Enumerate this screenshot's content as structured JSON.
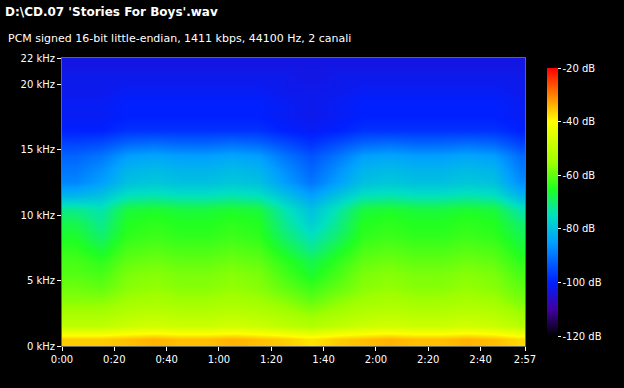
{
  "chart_data": {
    "type": "heatmap",
    "title": "D:\\CD.07 'Stories For Boys'.wav",
    "subtitle": "PCM signed 16-bit little-endian, 1411 kbps, 44100 Hz, 2 canali",
    "x": [
      5,
      15,
      25,
      35,
      45,
      55,
      65,
      75,
      85,
      95,
      105,
      115,
      125,
      135,
      145,
      155,
      165,
      175
    ],
    "y": [
      0.5,
      1.5,
      2.5,
      3.5,
      4.5,
      5.5,
      6.5,
      7.5,
      8.5,
      9.5,
      10.5,
      11.5,
      12.5,
      13.5,
      14.5,
      15.5,
      16.5,
      17.5,
      18.5,
      19.5,
      20.5,
      21.5
    ],
    "z": [
      [
        -36,
        -36,
        -35,
        -34,
        -35,
        -35,
        -34,
        -35,
        -36,
        -38,
        -36,
        -35,
        -34,
        -35,
        -35,
        -34,
        -35,
        -37
      ],
      [
        -50,
        -50,
        -48,
        -47,
        -48,
        -48,
        -47,
        -48,
        -50,
        -52,
        -50,
        -48,
        -47,
        -48,
        -48,
        -47,
        -48,
        -51
      ],
      [
        -54,
        -54,
        -52,
        -51,
        -52,
        -52,
        -51,
        -52,
        -54,
        -56,
        -54,
        -52,
        -51,
        -52,
        -52,
        -51,
        -52,
        -55
      ],
      [
        -57,
        -57,
        -55,
        -54,
        -55,
        -55,
        -54,
        -55,
        -57,
        -60,
        -57,
        -55,
        -54,
        -55,
        -55,
        -54,
        -55,
        -58
      ],
      [
        -59,
        -60,
        -57,
        -56,
        -57,
        -57,
        -56,
        -57,
        -60,
        -63,
        -60,
        -57,
        -56,
        -57,
        -57,
        -56,
        -57,
        -60
      ],
      [
        -61,
        -62,
        -58,
        -57,
        -58,
        -58,
        -57,
        -58,
        -62,
        -66,
        -62,
        -58,
        -57,
        -58,
        -58,
        -57,
        -58,
        -62
      ],
      [
        -62,
        -64,
        -60,
        -59,
        -60,
        -60,
        -59,
        -60,
        -64,
        -68,
        -64,
        -60,
        -59,
        -60,
        -60,
        -59,
        -60,
        -64
      ],
      [
        -64,
        -67,
        -62,
        -61,
        -62,
        -62,
        -61,
        -62,
        -67,
        -72,
        -67,
        -62,
        -61,
        -62,
        -62,
        -61,
        -62,
        -66
      ],
      [
        -66,
        -70,
        -64,
        -63,
        -64,
        -64,
        -63,
        -64,
        -70,
        -75,
        -70,
        -64,
        -63,
        -64,
        -64,
        -63,
        -64,
        -68
      ],
      [
        -68,
        -72,
        -65,
        -64,
        -65,
        -65,
        -64,
        -65,
        -72,
        -78,
        -72,
        -65,
        -64,
        -65,
        -65,
        -64,
        -65,
        -70
      ],
      [
        -72,
        -74,
        -67,
        -66,
        -67,
        -67,
        -66,
        -67,
        -74,
        -80,
        -74,
        -67,
        -66,
        -67,
        -67,
        -66,
        -67,
        -74
      ],
      [
        -82,
        -80,
        -75,
        -74,
        -75,
        -75,
        -74,
        -75,
        -80,
        -85,
        -80,
        -75,
        -74,
        -75,
        -75,
        -74,
        -75,
        -82
      ],
      [
        -88,
        -85,
        -80,
        -79,
        -80,
        -80,
        -79,
        -80,
        -85,
        -90,
        -85,
        -80,
        -79,
        -80,
        -80,
        -79,
        -80,
        -87
      ],
      [
        -90,
        -87,
        -82,
        -81,
        -82,
        -82,
        -81,
        -82,
        -87,
        -92,
        -87,
        -82,
        -81,
        -82,
        -82,
        -81,
        -82,
        -89
      ],
      [
        -92,
        -90,
        -85,
        -84,
        -85,
        -85,
        -84,
        -85,
        -90,
        -94,
        -90,
        -85,
        -84,
        -85,
        -85,
        -84,
        -85,
        -91
      ],
      [
        -96,
        -95,
        -92,
        -91,
        -92,
        -92,
        -91,
        -92,
        -95,
        -98,
        -95,
        -92,
        -91,
        -92,
        -92,
        -91,
        -92,
        -96
      ],
      [
        -100,
        -100,
        -98,
        -98,
        -98,
        -98,
        -98,
        -98,
        -100,
        -101,
        -100,
        -98,
        -98,
        -98,
        -98,
        -98,
        -98,
        -100
      ],
      [
        -101,
        -101,
        -100,
        -100,
        -100,
        -100,
        -100,
        -100,
        -101,
        -102,
        -101,
        -100,
        -100,
        -100,
        -100,
        -100,
        -100,
        -101
      ],
      [
        -101,
        -101,
        -100,
        -100,
        -100,
        -100,
        -100,
        -100,
        -101,
        -102,
        -101,
        -100,
        -100,
        -100,
        -100,
        -100,
        -100,
        -101
      ],
      [
        -102,
        -102,
        -101,
        -101,
        -101,
        -101,
        -101,
        -101,
        -102,
        -102,
        -102,
        -101,
        -101,
        -101,
        -101,
        -101,
        -101,
        -102
      ],
      [
        -102,
        -102,
        -102,
        -102,
        -102,
        -102,
        -102,
        -102,
        -102,
        -103,
        -102,
        -102,
        -102,
        -102,
        -102,
        -102,
        -102,
        -102
      ],
      [
        -103,
        -103,
        -103,
        -103,
        -103,
        -103,
        -103,
        -103,
        -103,
        -103,
        -103,
        -103,
        -103,
        -103,
        -103,
        -103,
        -103,
        -103
      ]
    ],
    "xlim": [
      0,
      177
    ],
    "xticks": [
      {
        "value": 0,
        "label": "0:00"
      },
      {
        "value": 20,
        "label": "0:20"
      },
      {
        "value": 40,
        "label": "0:40"
      },
      {
        "value": 60,
        "label": "1:00"
      },
      {
        "value": 80,
        "label": "1:20"
      },
      {
        "value": 100,
        "label": "1:40"
      },
      {
        "value": 120,
        "label": "2:00"
      },
      {
        "value": 140,
        "label": "2:20"
      },
      {
        "value": 160,
        "label": "2:40"
      },
      {
        "value": 177,
        "label": "2:57"
      }
    ],
    "ylim": [
      0,
      22
    ],
    "yticks": [
      {
        "value": 0,
        "label": "0 kHz"
      },
      {
        "value": 5,
        "label": "5 kHz"
      },
      {
        "value": 10,
        "label": "10 kHz"
      },
      {
        "value": 15,
        "label": "15 kHz"
      },
      {
        "value": 20,
        "label": "20 kHz"
      },
      {
        "value": 22,
        "label": "22 kHz"
      }
    ],
    "colorbar_range": [
      -120,
      -20
    ],
    "colorbar_ticks": [
      {
        "value": -20,
        "label": "-20 dB"
      },
      {
        "value": -40,
        "label": "-40 dB"
      },
      {
        "value": -60,
        "label": "-60 dB"
      },
      {
        "value": -80,
        "label": "-80 dB"
      },
      {
        "value": -100,
        "label": "-100 dB"
      },
      {
        "value": -120,
        "label": "-120 dB"
      }
    ]
  }
}
